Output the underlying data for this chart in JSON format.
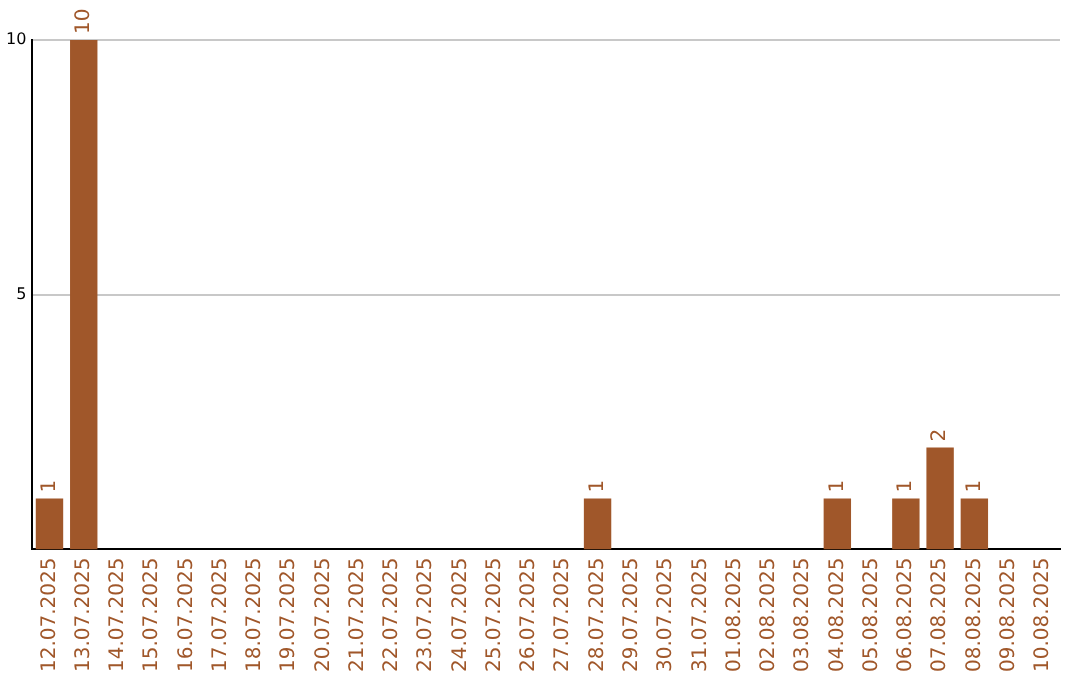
{
  "chart_data": {
    "type": "bar",
    "categories": [
      "12.07.2025",
      "13.07.2025",
      "14.07.2025",
      "15.07.2025",
      "16.07.2025",
      "17.07.2025",
      "18.07.2025",
      "19.07.2025",
      "20.07.2025",
      "21.07.2025",
      "22.07.2025",
      "23.07.2025",
      "24.07.2025",
      "25.07.2025",
      "26.07.2025",
      "27.07.2025",
      "28.07.2025",
      "29.07.2025",
      "30.07.2025",
      "31.07.2025",
      "01.08.2025",
      "02.08.2025",
      "03.08.2025",
      "04.08.2025",
      "05.08.2025",
      "06.08.2025",
      "07.08.2025",
      "08.08.2025",
      "09.08.2025",
      "10.08.2025"
    ],
    "values": [
      1,
      10,
      0,
      0,
      0,
      0,
      0,
      0,
      0,
      0,
      0,
      0,
      0,
      0,
      0,
      0,
      1,
      0,
      0,
      0,
      0,
      0,
      0,
      1,
      0,
      1,
      2,
      1,
      0,
      0
    ],
    "value_labels": [
      "1",
      "10",
      null,
      null,
      null,
      null,
      null,
      null,
      null,
      null,
      null,
      null,
      null,
      null,
      null,
      null,
      "1",
      null,
      null,
      null,
      null,
      null,
      null,
      "1",
      null,
      "1",
      "2",
      "1",
      null,
      null
    ],
    "color": "#a0572a",
    "ylim": [
      0,
      10
    ],
    "yticks": [
      5,
      10
    ],
    "grid": "y",
    "legend": false
  }
}
